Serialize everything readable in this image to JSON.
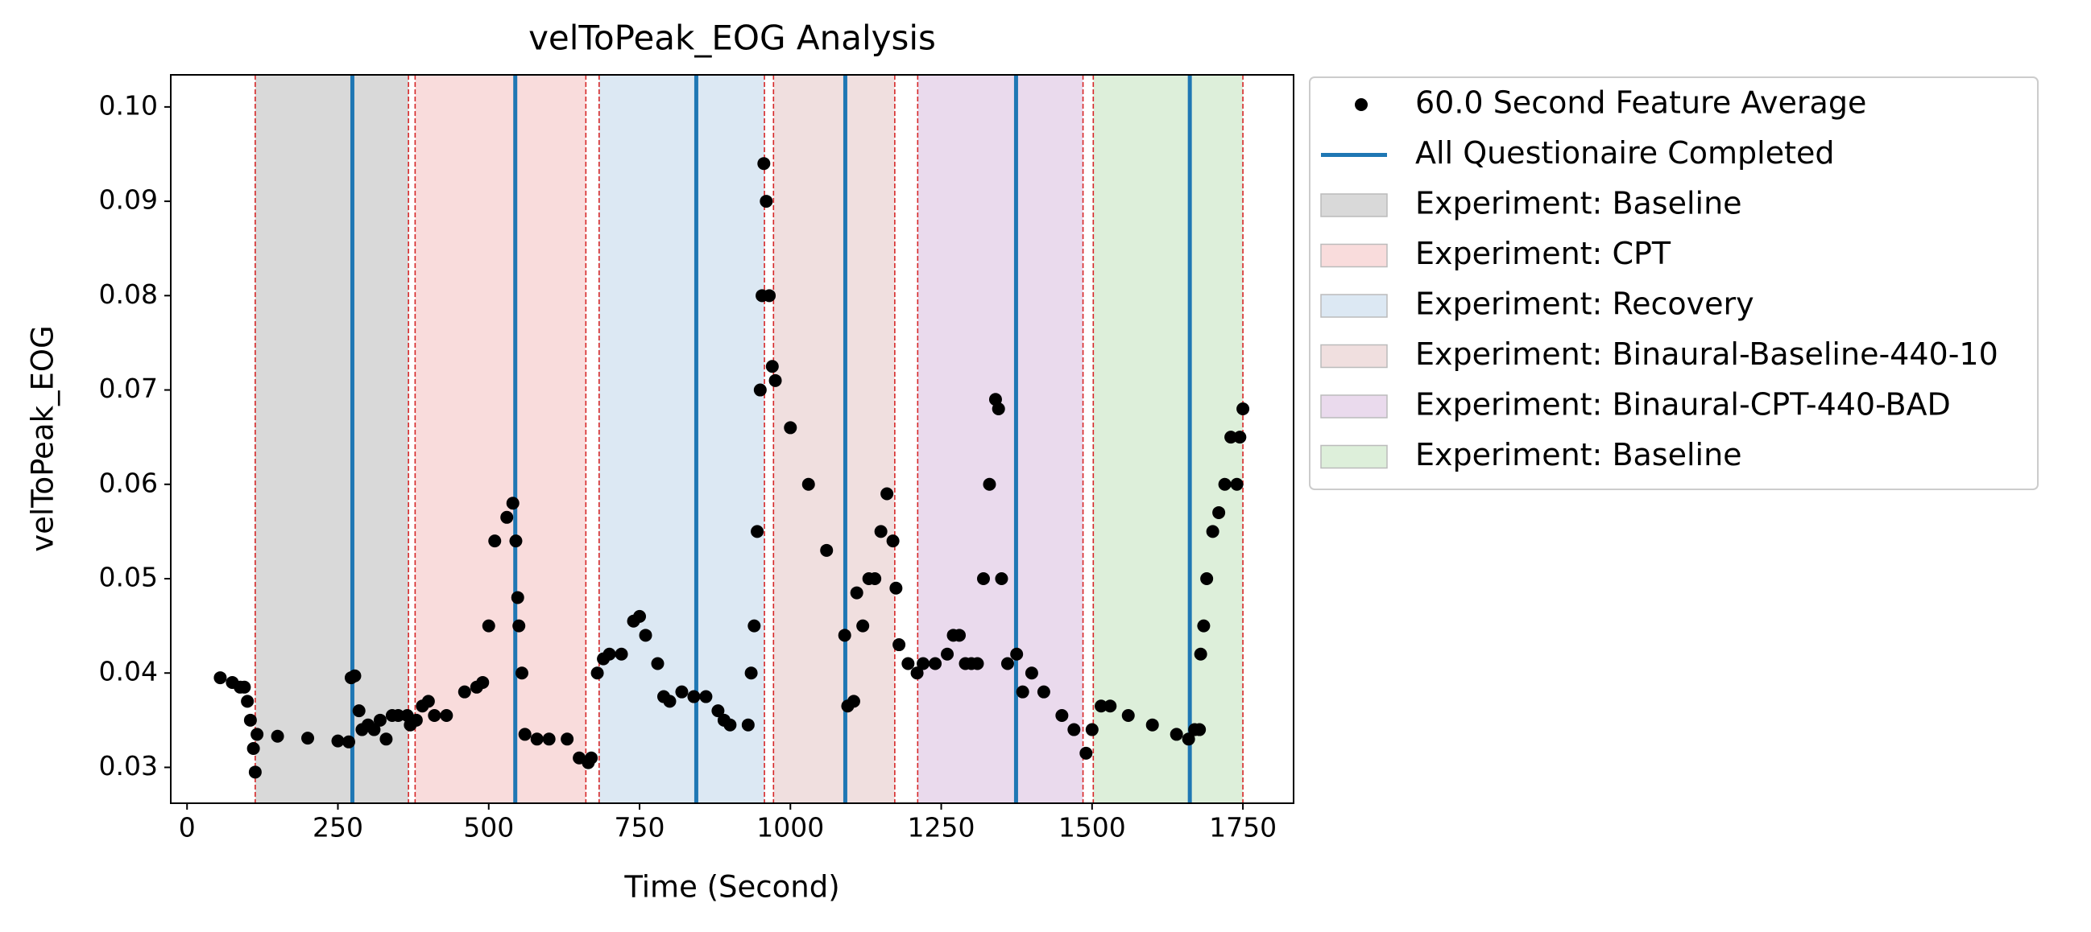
{
  "chart_data": {
    "type": "scatter",
    "title": "velToPeak_EOG Analysis",
    "xlabel": "Time (Second)",
    "ylabel": "velToPeak_EOG",
    "xlim": [
      -27,
      1834
    ],
    "ylim": [
      0.0262,
      0.1034
    ],
    "xticks": [
      0,
      250,
      500,
      750,
      1000,
      1250,
      1500,
      1750
    ],
    "yticks": [
      0.03,
      0.04,
      0.05,
      0.06,
      0.07,
      0.08,
      0.09,
      {
        "value": 0.1,
        "label": "0.10"
      }
    ],
    "span_edge_color": "#d62728",
    "spans": [
      {
        "name": "Experiment: Baseline",
        "start": 113,
        "end": 367,
        "color": "#d9d9d9"
      },
      {
        "name": "Experiment: CPT",
        "start": 378,
        "end": 661,
        "color": "#f9dcdc"
      },
      {
        "name": "Experiment: Recovery",
        "start": 683,
        "end": 957,
        "color": "#dce8f3"
      },
      {
        "name": "Experiment: Binaural-Baseline-440-10",
        "start": 972,
        "end": 1173,
        "color": "#f0dfdf"
      },
      {
        "name": "Experiment: Binaural-CPT-440-BAD",
        "start": 1211,
        "end": 1485,
        "color": "#eadaed"
      },
      {
        "name": "Experiment: Baseline",
        "start": 1502,
        "end": 1750,
        "color": "#ddefda"
      }
    ],
    "vlines": {
      "name": "All Questionaire Completed",
      "color": "#1f77b4",
      "x": [
        274,
        544,
        844,
        1091,
        1374,
        1662
      ]
    },
    "series": [
      {
        "name": "60.0 Second Feature Average",
        "color": "#000000",
        "x": [
          55,
          75,
          88,
          95,
          100,
          105,
          110,
          113,
          116,
          150,
          200,
          250,
          268,
          272,
          278,
          285,
          290,
          300,
          310,
          320,
          330,
          340,
          350,
          365,
          370,
          380,
          390,
          400,
          410,
          430,
          460,
          480,
          490,
          500,
          510,
          530,
          540,
          545,
          548,
          550,
          555,
          560,
          580,
          600,
          630,
          650,
          665,
          670,
          680,
          690,
          700,
          720,
          740,
          750,
          760,
          780,
          790,
          800,
          820,
          840,
          860,
          880,
          890,
          900,
          930,
          935,
          940,
          945,
          950,
          953,
          956,
          960,
          965,
          970,
          975,
          1000,
          1030,
          1060,
          1090,
          1095,
          1105,
          1110,
          1120,
          1130,
          1140,
          1150,
          1160,
          1170,
          1175,
          1180,
          1195,
          1210,
          1220,
          1240,
          1260,
          1270,
          1280,
          1290,
          1300,
          1310,
          1320,
          1330,
          1340,
          1345,
          1350,
          1360,
          1375,
          1385,
          1400,
          1420,
          1450,
          1470,
          1490,
          1500,
          1515,
          1530,
          1560,
          1600,
          1640,
          1660,
          1670,
          1678,
          1680,
          1685,
          1690,
          1700,
          1710,
          1720,
          1730,
          1740,
          1745,
          1750
        ],
        "values": [
          0.0395,
          0.039,
          0.0385,
          0.0385,
          0.037,
          0.035,
          0.032,
          0.0295,
          0.0335,
          0.0333,
          0.0331,
          0.0328,
          0.0327,
          0.0395,
          0.0397,
          0.036,
          0.034,
          0.0345,
          0.034,
          0.035,
          0.033,
          0.0355,
          0.0355,
          0.0355,
          0.0345,
          0.035,
          0.0365,
          0.037,
          0.0355,
          0.0355,
          0.038,
          0.0385,
          0.039,
          0.045,
          0.054,
          0.0565,
          0.058,
          0.054,
          0.048,
          0.045,
          0.04,
          0.0335,
          0.033,
          0.033,
          0.033,
          0.031,
          0.0305,
          0.031,
          0.04,
          0.0415,
          0.042,
          0.042,
          0.0455,
          0.046,
          0.044,
          0.041,
          0.0375,
          0.037,
          0.038,
          0.0375,
          0.0375,
          0.036,
          0.035,
          0.0345,
          0.0345,
          0.04,
          0.045,
          0.055,
          0.07,
          0.08,
          0.094,
          0.09,
          0.08,
          0.0725,
          0.071,
          0.066,
          0.06,
          0.053,
          0.044,
          0.0365,
          0.037,
          0.0485,
          0.045,
          0.05,
          0.05,
          0.055,
          0.059,
          0.054,
          0.049,
          0.043,
          0.041,
          0.04,
          0.041,
          0.041,
          0.042,
          0.044,
          0.044,
          0.041,
          0.041,
          0.041,
          0.05,
          0.06,
          0.069,
          0.068,
          0.05,
          0.041,
          0.042,
          0.038,
          0.04,
          0.038,
          0.0355,
          0.034,
          0.0315,
          0.034,
          0.0365,
          0.0365,
          0.0355,
          0.0345,
          0.0335,
          0.033,
          0.034,
          0.034,
          0.042,
          0.045,
          0.05,
          0.055,
          0.057,
          0.06,
          0.065,
          0.06,
          0.065,
          0.068
        ]
      }
    ]
  }
}
